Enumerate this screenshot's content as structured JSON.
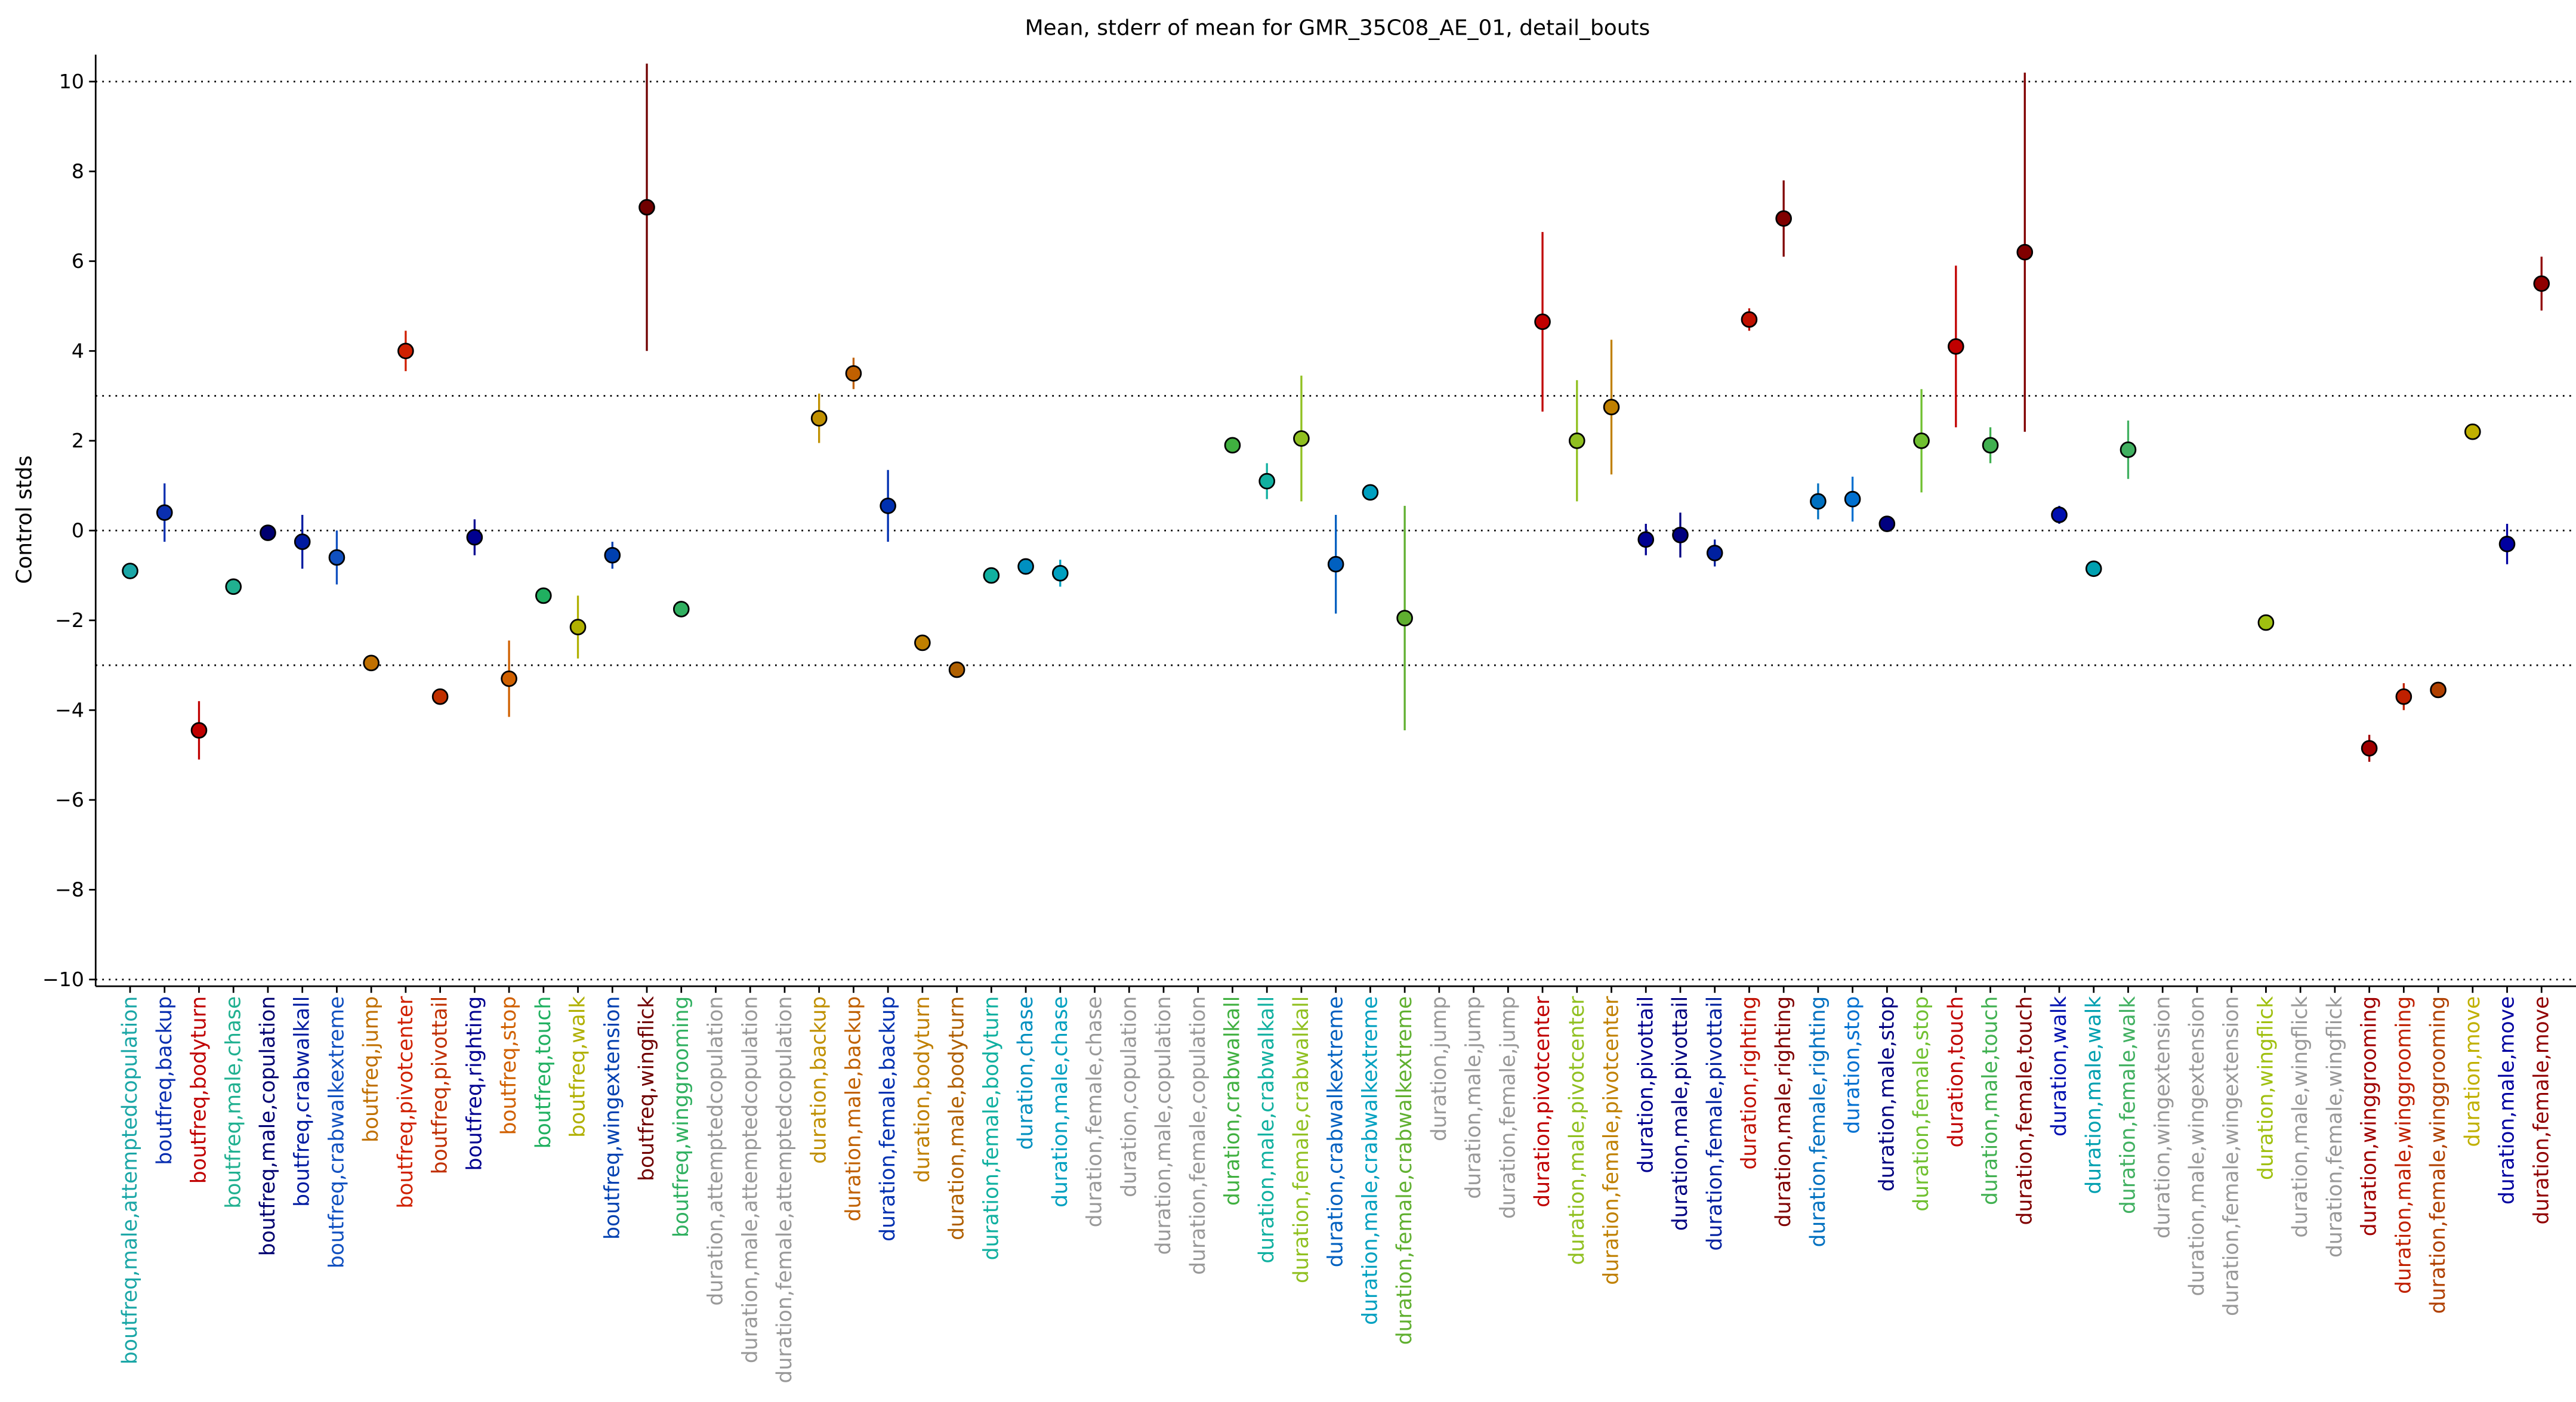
{
  "chart_data": {
    "type": "errorbar",
    "title": "Mean, stderr of mean for GMR_35C08_AE_01, detail_bouts",
    "ylabel": "Control stds",
    "categories": [
      "boutfreq,male,attemptedcopulation",
      "boutfreq,backup",
      "boutfreq,bodyturn",
      "boutfreq,male,chase",
      "boutfreq,male,copulation",
      "boutfreq,crabwalkall",
      "boutfreq,crabwalkextreme",
      "boutfreq,jump",
      "boutfreq,pivotcenter",
      "boutfreq,pivottail",
      "boutfreq,righting",
      "boutfreq,stop",
      "boutfreq,touch",
      "boutfreq,walk",
      "boutfreq,wingextension",
      "boutfreq,wingflick",
      "boutfreq,winggrooming",
      "duration,attemptedcopulation",
      "duration,male,attemptedcopulation",
      "duration,female,attemptedcopulation",
      "duration,backup",
      "duration,male,backup",
      "duration,female,backup",
      "duration,bodyturn",
      "duration,male,bodyturn",
      "duration,female,bodyturn",
      "duration,chase",
      "duration,male,chase",
      "duration,female,chase",
      "duration,copulation",
      "duration,male,copulation",
      "duration,female,copulation",
      "duration,crabwalkall",
      "duration,male,crabwalkall",
      "duration,female,crabwalkall",
      "duration,crabwalkextreme",
      "duration,male,crabwalkextreme",
      "duration,female,crabwalkextreme",
      "duration,jump",
      "duration,male,jump",
      "duration,female,jump",
      "duration,pivotcenter",
      "duration,male,pivotcenter",
      "duration,female,pivotcenter",
      "duration,pivottail",
      "duration,male,pivottail",
      "duration,female,pivottail",
      "duration,righting",
      "duration,male,righting",
      "duration,female,righting",
      "duration,stop",
      "duration,male,stop",
      "duration,female,stop",
      "duration,touch",
      "duration,male,touch",
      "duration,female,touch",
      "duration,walk",
      "duration,male,walk",
      "duration,female,walk",
      "duration,wingextension",
      "duration,male,wingextension",
      "duration,female,wingextension",
      "duration,wingflick",
      "duration,male,wingflick",
      "duration,female,wingflick",
      "duration,winggrooming",
      "duration,male,winggrooming",
      "duration,female,winggrooming",
      "duration,move",
      "duration,male,move",
      "duration,female,move"
    ],
    "values": [
      -0.9,
      0.4,
      -4.45,
      -1.25,
      -0.05,
      -0.25,
      -0.6,
      -2.95,
      4.0,
      -3.7,
      -0.15,
      -3.3,
      -1.45,
      -2.15,
      -0.55,
      7.2,
      -1.75,
      null,
      null,
      null,
      2.5,
      3.5,
      0.55,
      -2.5,
      -3.1,
      -1.0,
      -0.8,
      -0.95,
      null,
      null,
      null,
      null,
      1.9,
      1.1,
      2.05,
      -0.75,
      0.85,
      -1.95,
      null,
      null,
      null,
      4.65,
      2.0,
      2.75,
      -0.2,
      -0.1,
      -0.5,
      4.7,
      6.95,
      0.65,
      0.7,
      0.15,
      2.0,
      4.1,
      1.9,
      6.2,
      0.35,
      -0.85,
      1.8,
      null,
      null,
      null,
      -2.05,
      null,
      null,
      -4.85,
      -3.7,
      -3.55,
      2.2,
      -0.3,
      5.5
    ],
    "errors": [
      0.1,
      0.65,
      0.65,
      0.1,
      0.1,
      0.6,
      0.6,
      0.1,
      0.45,
      0.1,
      0.4,
      0.85,
      0.1,
      0.7,
      0.3,
      3.2,
      0.1,
      null,
      null,
      null,
      0.55,
      0.35,
      0.8,
      0.1,
      0.1,
      0.1,
      0.1,
      0.3,
      null,
      null,
      null,
      null,
      0.1,
      0.4,
      1.4,
      1.1,
      0.1,
      2.5,
      null,
      null,
      null,
      2.0,
      1.35,
      1.5,
      0.35,
      0.5,
      0.3,
      0.25,
      0.85,
      0.4,
      0.5,
      0.1,
      1.15,
      1.8,
      0.4,
      4.0,
      0.2,
      0.1,
      0.65,
      null,
      null,
      null,
      0.1,
      null,
      null,
      0.3,
      0.3,
      0.1,
      0.1,
      0.45,
      0.6
    ],
    "colors": [
      "#1aa6a6",
      "#0a2fb0",
      "#c00000",
      "#20b090",
      "#000070",
      "#001aa0",
      "#1050c0",
      "#c07000",
      "#d02000",
      "#c03000",
      "#000090",
      "#d06000",
      "#20b060",
      "#b0b000",
      "#0040b0",
      "#700000",
      "#30b060",
      "#999999",
      "#999999",
      "#999999",
      "#c09000",
      "#c06000",
      "#0030b0",
      "#c08000",
      "#b06000",
      "#10b0a0",
      "#0090c0",
      "#00a0c0",
      "#999999",
      "#999999",
      "#999999",
      "#999999",
      "#40b040",
      "#10b0a0",
      "#90c020",
      "#0060c0",
      "#00a0c0",
      "#60b030",
      "#999999",
      "#999999",
      "#999999",
      "#c00000",
      "#90c020",
      "#c08000",
      "#000090",
      "#000080",
      "#0020a0",
      "#c01000",
      "#800000",
      "#0070c0",
      "#0070d0",
      "#000080",
      "#70c030",
      "#c00000",
      "#40b050",
      "#800000",
      "#0010b0",
      "#00a0b0",
      "#40b060",
      "#999999",
      "#999999",
      "#999999",
      "#a0c010",
      "#999999",
      "#999999",
      "#a00000",
      "#c02000",
      "#b04000",
      "#c0b000",
      "#0000a0",
      "#900000"
    ],
    "ylim": [
      -10.15,
      10.6
    ],
    "yticks": [
      {
        "value": -10,
        "label": "−10"
      },
      {
        "value": -8,
        "label": "−8"
      },
      {
        "value": -6,
        "label": "−6"
      },
      {
        "value": -4,
        "label": "−4"
      },
      {
        "value": -2,
        "label": "−2"
      },
      0,
      2,
      4,
      6,
      8,
      10
    ],
    "hlines": [
      10,
      3,
      0,
      -3,
      -10
    ]
  }
}
